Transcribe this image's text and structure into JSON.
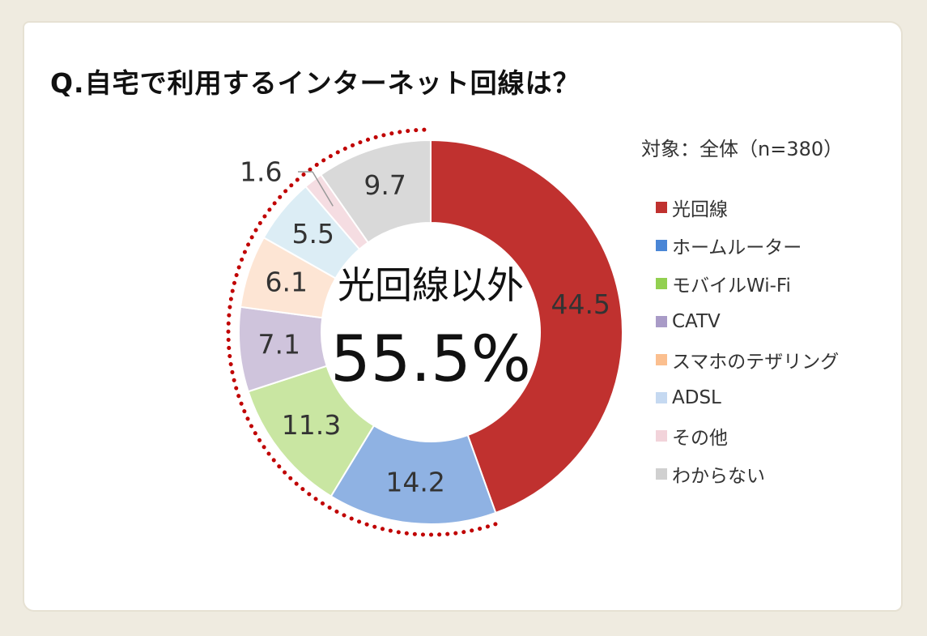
{
  "chart_data": {
    "type": "pie",
    "title": "Q.自宅で利用するインターネット回線は？",
    "subtitle": "対象：全体（n=380）",
    "center_label": "光回線以外",
    "center_value": "55.5%",
    "slices": [
      {
        "name": "光回線",
        "value": 44.5,
        "label": "44.5",
        "color": "#c0312f"
      },
      {
        "name": "ホームルーター",
        "value": 14.2,
        "label": "14.2",
        "color": "#8fb2e3"
      },
      {
        "name": "モバイルWi-Fi",
        "value": 11.3,
        "label": "11.3",
        "color": "#c9e6a2"
      },
      {
        "name": "CATV",
        "value": 7.1,
        "label": "7.1",
        "color": "#cfc4dc"
      },
      {
        "name": "スマホのテザリング",
        "value": 6.1,
        "label": "6.1",
        "color": "#fde5d4"
      },
      {
        "name": "ADSL",
        "value": 5.5,
        "label": "5.5",
        "color": "#dcedf5"
      },
      {
        "name": "その他",
        "value": 1.6,
        "label": "1.6",
        "color": "#f5dde2"
      },
      {
        "name": "わからない",
        "value": 9.7,
        "label": "9.7",
        "color": "#d9d9d9"
      }
    ],
    "legend": [
      {
        "name": "光回線",
        "color": "#c0312f"
      },
      {
        "name": "ホームルーター",
        "color": "#4a86d6"
      },
      {
        "name": "モバイルWi-Fi",
        "color": "#92d050"
      },
      {
        "name": "CATV",
        "color": "#a99bc7"
      },
      {
        "name": "スマホのテザリング",
        "color": "#fbbf8f"
      },
      {
        "name": "ADSL",
        "color": "#c5d9f1"
      },
      {
        "name": "その他",
        "color": "#f2d3da"
      },
      {
        "name": "わからない",
        "color": "#d0d0d0"
      }
    ],
    "legend_position": "right",
    "highlight_ring_color": "#c00000"
  }
}
